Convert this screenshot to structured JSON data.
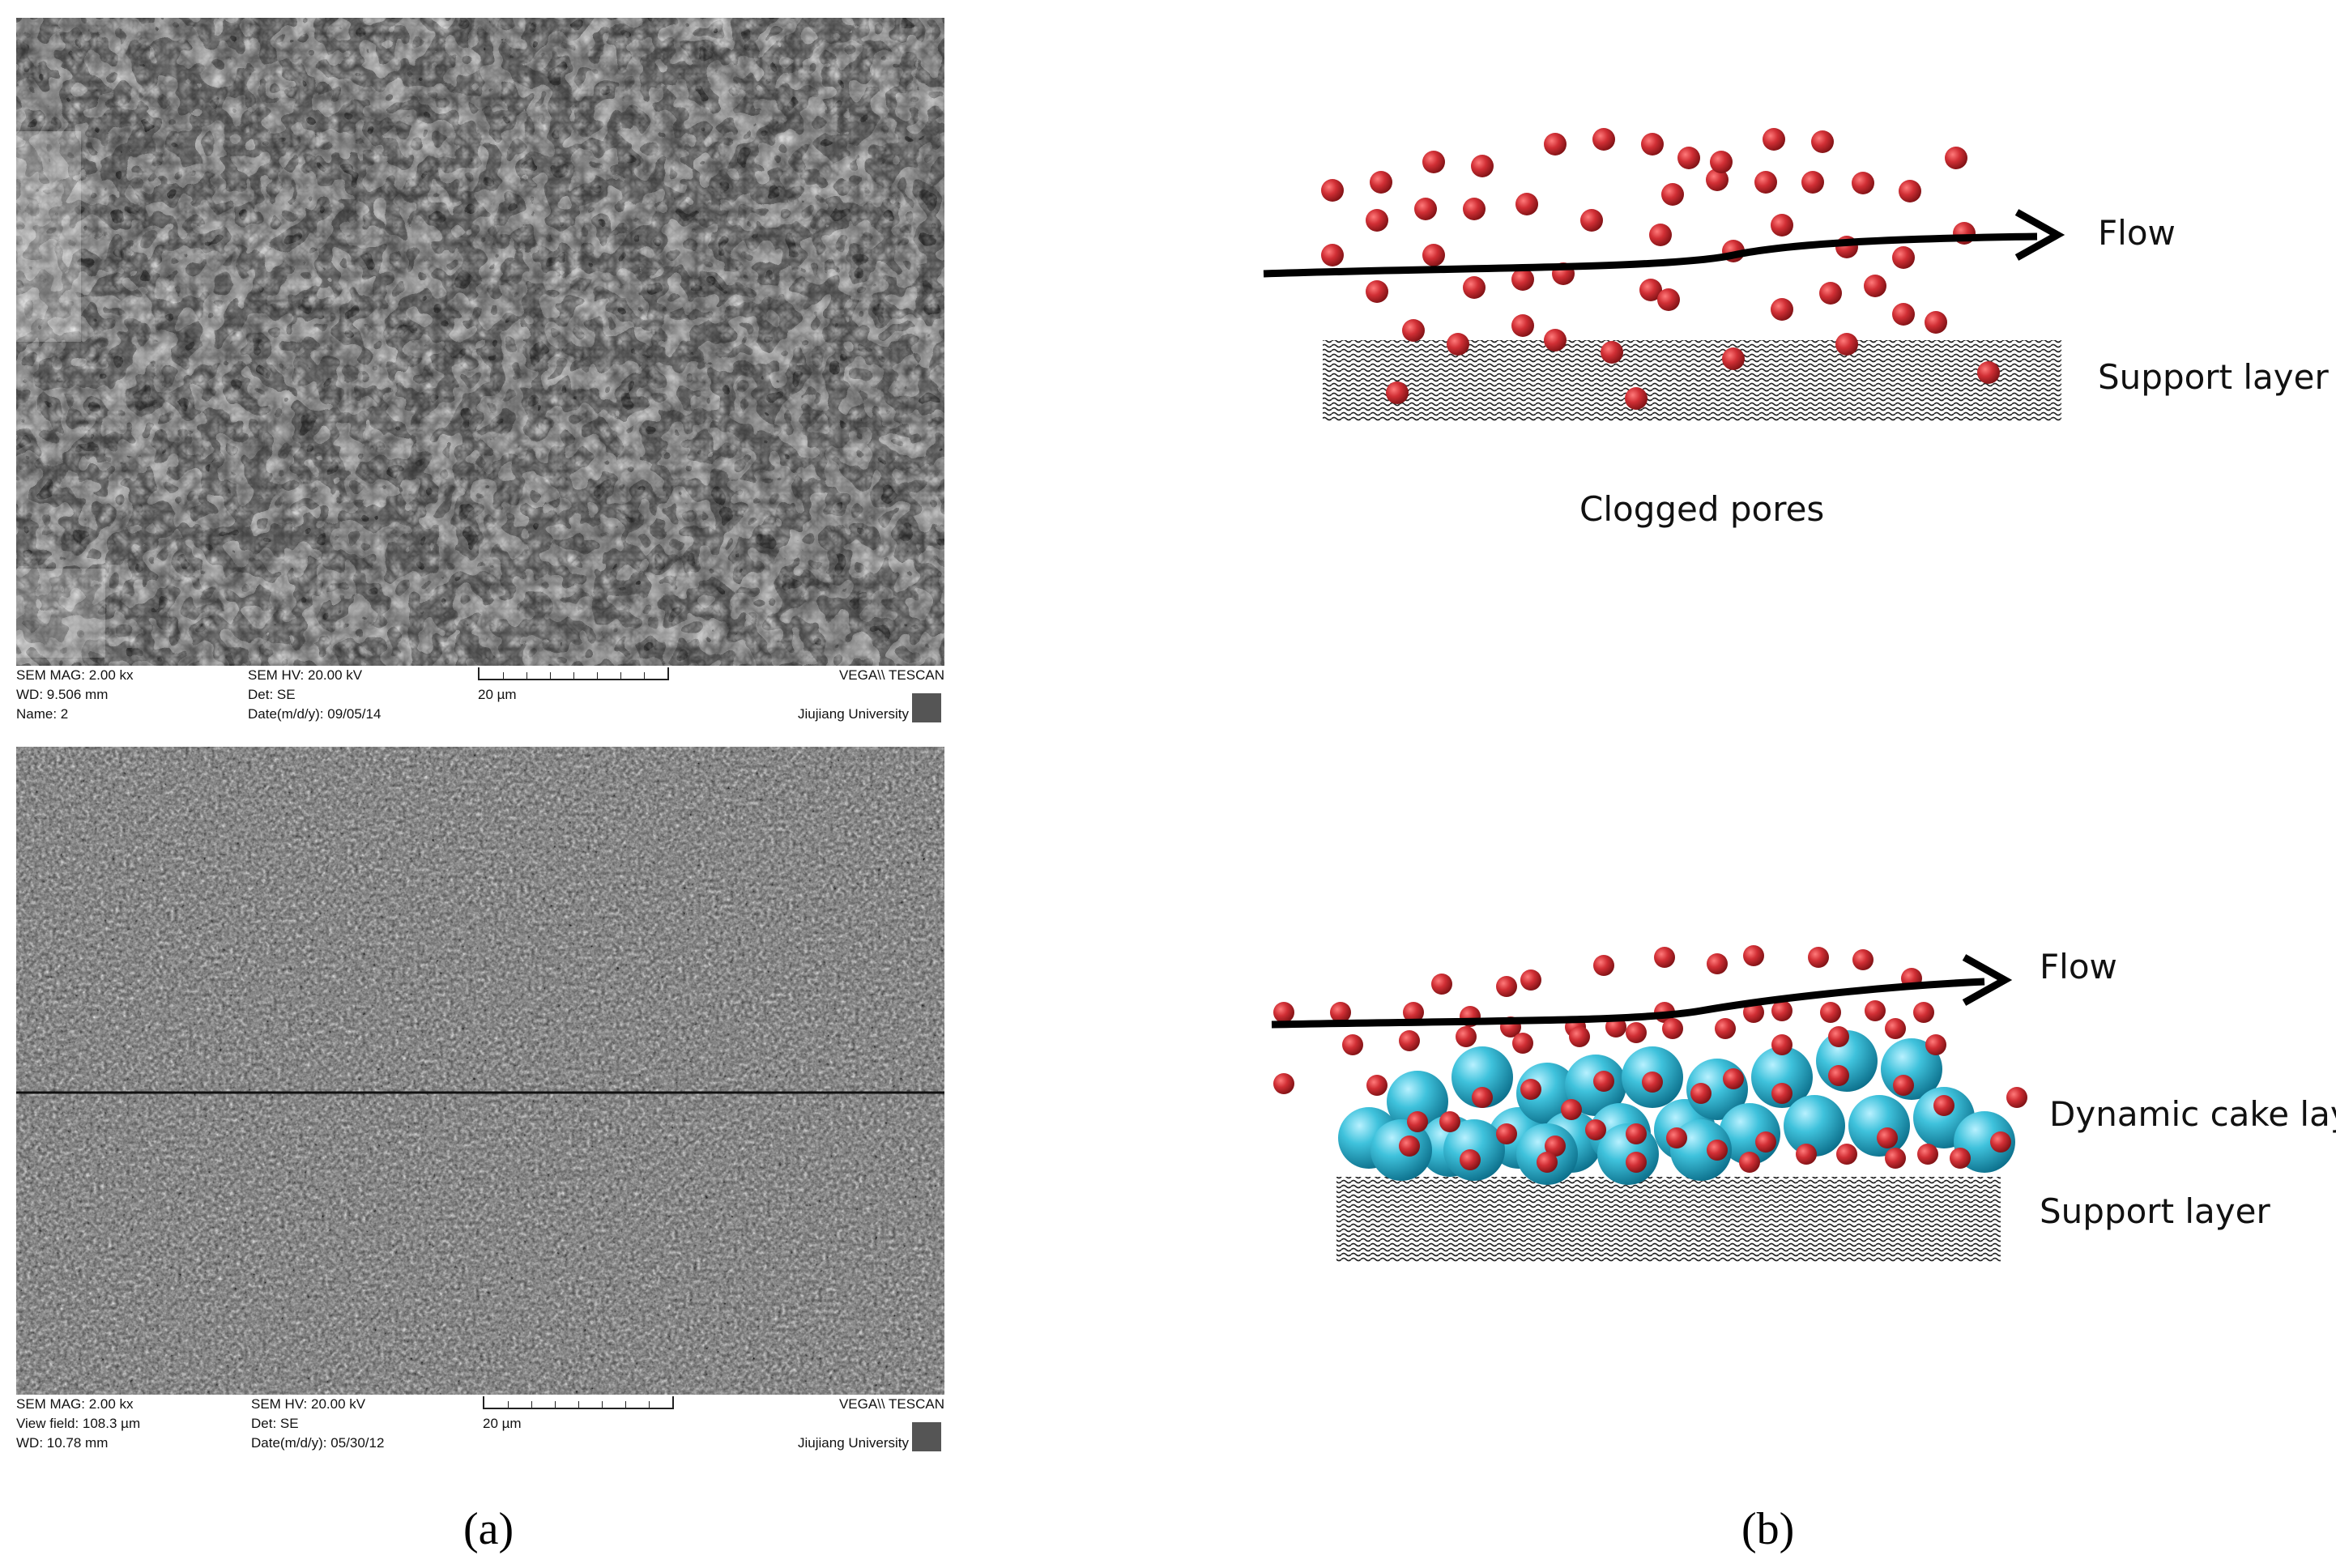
{
  "panel_a": {
    "label": "(a)",
    "images": [
      {
        "id": "top",
        "meta": {
          "mag": "SEM MAG: 2.00 kx",
          "wd": "WD: 9.506 mm",
          "name": "Name: 2",
          "hv": "SEM HV: 20.00 kV",
          "det": "Det: SE",
          "date": "Date(m/d/y): 09/05/14",
          "scale": "20 µm",
          "brand": "VEGA\\\\ TESCAN",
          "institution": "Jiujiang University"
        }
      },
      {
        "id": "bottom",
        "meta": {
          "mag": "SEM MAG: 2.00 kx",
          "wd": "View field: 108.3 µm",
          "name": "WD: 10.78 mm",
          "hv": "SEM HV: 20.00 kV",
          "det": "Det: SE",
          "date": "Date(m/d/y): 05/30/12",
          "scale": "20 µm",
          "brand": "VEGA\\\\ TESCAN",
          "institution": "Jiujiang University"
        }
      }
    ]
  },
  "panel_b": {
    "label": "(b)",
    "top": {
      "flow": "Flow",
      "support": "Support layer",
      "caption": "Clogged pores"
    },
    "bottom": {
      "flow": "Flow",
      "cake": "Dynamic cake layer",
      "support": "Support layer"
    },
    "colors": {
      "particle": "#c0282c",
      "cake": "#2fb4cc",
      "arrow": "#000000"
    }
  }
}
